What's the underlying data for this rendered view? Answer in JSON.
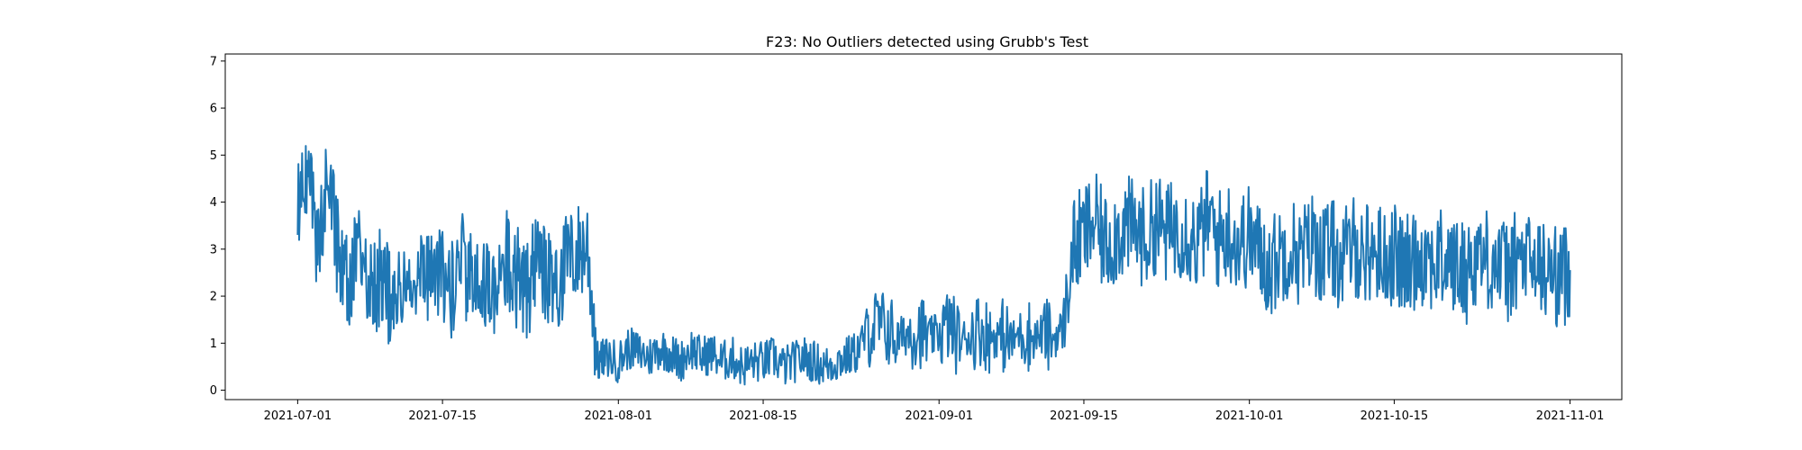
{
  "chart_data": {
    "type": "line",
    "title": "F23: No Outliers detected using Grubb's Test",
    "xlabel": "",
    "ylabel": "",
    "x_axis_type": "date",
    "xlim": [
      "2021-06-24",
      "2021-11-06"
    ],
    "ylim": [
      -0.2,
      7.15
    ],
    "x_ticks": [
      "2021-07-01",
      "2021-07-15",
      "2021-08-01",
      "2021-08-15",
      "2021-09-01",
      "2021-09-15",
      "2021-10-01",
      "2021-10-15",
      "2021-11-01"
    ],
    "y_ticks": [
      0,
      1,
      2,
      3,
      4,
      5,
      6,
      7
    ],
    "grid": false,
    "legend": "none",
    "series": [
      {
        "color": "#1f77b4",
        "x": [
          "2021-07-01",
          "2021-07-02",
          "2021-07-03",
          "2021-07-04",
          "2021-07-05",
          "2021-07-06",
          "2021-07-07",
          "2021-07-08",
          "2021-07-09",
          "2021-07-10",
          "2021-07-11",
          "2021-07-12",
          "2021-07-13",
          "2021-07-14",
          "2021-07-15",
          "2021-07-16",
          "2021-07-17",
          "2021-07-18",
          "2021-07-19",
          "2021-07-20",
          "2021-07-21",
          "2021-07-22",
          "2021-07-23",
          "2021-07-24",
          "2021-07-25",
          "2021-07-26",
          "2021-07-27",
          "2021-07-28",
          "2021-07-29",
          "2021-07-30",
          "2021-07-31",
          "2021-08-01",
          "2021-08-02",
          "2021-08-03",
          "2021-08-04",
          "2021-08-05",
          "2021-08-06",
          "2021-08-07",
          "2021-08-08",
          "2021-08-09",
          "2021-08-10",
          "2021-08-11",
          "2021-08-12",
          "2021-08-13",
          "2021-08-14",
          "2021-08-15",
          "2021-08-16",
          "2021-08-17",
          "2021-08-18",
          "2021-08-19",
          "2021-08-20",
          "2021-08-21",
          "2021-08-22",
          "2021-08-23",
          "2021-08-24",
          "2021-08-25",
          "2021-08-26",
          "2021-08-27",
          "2021-08-28",
          "2021-08-29",
          "2021-08-30",
          "2021-08-31",
          "2021-09-01",
          "2021-09-02",
          "2021-09-03",
          "2021-09-04",
          "2021-09-05",
          "2021-09-06",
          "2021-09-07",
          "2021-09-08",
          "2021-09-09",
          "2021-09-10",
          "2021-09-11",
          "2021-09-12",
          "2021-09-13",
          "2021-09-14",
          "2021-09-15",
          "2021-09-16",
          "2021-09-17",
          "2021-09-18",
          "2021-09-19",
          "2021-09-20",
          "2021-09-21",
          "2021-09-22",
          "2021-09-23",
          "2021-09-24",
          "2021-09-25",
          "2021-09-26",
          "2021-09-27",
          "2021-09-28",
          "2021-09-29",
          "2021-09-30",
          "2021-10-01",
          "2021-10-02",
          "2021-10-03",
          "2021-10-04",
          "2021-10-05",
          "2021-10-06",
          "2021-10-07",
          "2021-10-08",
          "2021-10-09",
          "2021-10-10",
          "2021-10-11",
          "2021-10-12",
          "2021-10-13",
          "2021-10-14",
          "2021-10-15",
          "2021-10-16",
          "2021-10-17",
          "2021-10-18",
          "2021-10-19",
          "2021-10-20",
          "2021-10-21",
          "2021-10-22",
          "2021-10-23",
          "2021-10-24",
          "2021-10-25",
          "2021-10-26",
          "2021-10-27",
          "2021-10-28",
          "2021-10-29",
          "2021-10-30",
          "2021-10-31",
          "2021-11-01"
        ],
        "y": [
          3.7,
          4.5,
          3.1,
          4.9,
          2.7,
          2.3,
          2.9,
          2.0,
          2.4,
          1.9,
          2.2,
          1.8,
          2.6,
          2.3,
          2.5,
          2.1,
          2.7,
          2.2,
          2.4,
          1.9,
          2.8,
          2.5,
          2.0,
          2.6,
          2.4,
          2.2,
          2.7,
          2.9,
          3.1,
          0.6,
          0.7,
          0.6,
          0.9,
          0.8,
          0.7,
          0.9,
          0.8,
          0.6,
          0.9,
          0.7,
          0.8,
          0.6,
          0.7,
          0.5,
          0.6,
          0.6,
          0.7,
          0.5,
          0.6,
          0.7,
          0.6,
          0.5,
          0.6,
          0.7,
          0.8,
          1.2,
          1.4,
          1.3,
          1.1,
          1.2,
          1.3,
          1.1,
          1.2,
          1.4,
          1.0,
          1.2,
          1.3,
          1.1,
          1.2,
          1.0,
          1.3,
          1.1,
          1.2,
          1.1,
          1.3,
          3.0,
          3.3,
          3.6,
          3.1,
          3.3,
          3.5,
          3.4,
          3.2,
          3.6,
          3.3,
          3.5,
          3.4,
          3.1,
          3.7,
          3.2,
          3.4,
          3.1,
          3.3,
          2.9,
          2.6,
          2.9,
          3.1,
          2.8,
          3.2,
          2.9,
          3.0,
          2.7,
          3.1,
          2.9,
          3.0,
          2.8,
          2.9,
          2.6,
          2.8,
          2.9,
          2.7,
          2.8,
          2.6,
          2.5,
          2.9,
          2.8,
          2.7,
          2.5,
          2.8,
          2.7,
          2.6,
          2.5,
          2.4,
          2.5
        ]
      }
    ]
  }
}
